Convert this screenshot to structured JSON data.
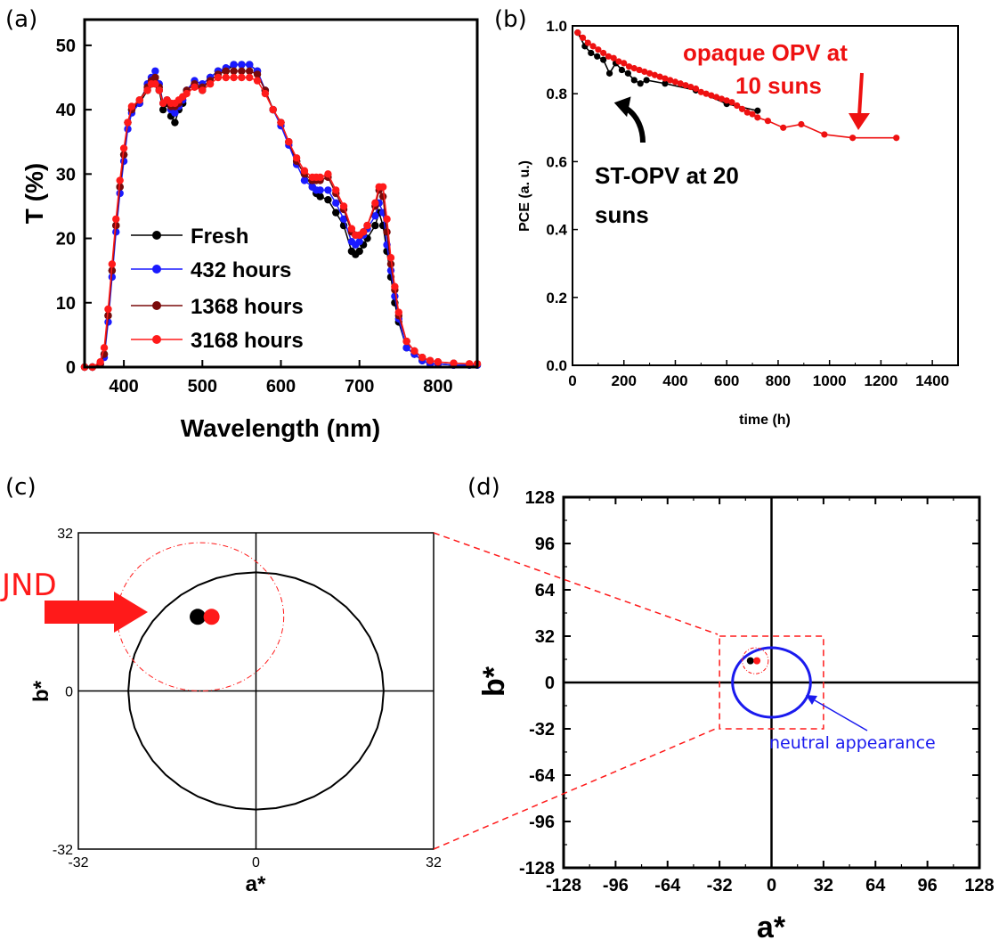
{
  "colors": {
    "fresh": "#000000",
    "h432": "#1a1aff",
    "h1368": "#7a0a0a",
    "h3168": "#ff1a1a",
    "st_opv": "#000000",
    "opaque": "#ee1111",
    "neutral": "#1a1aee",
    "jnd": "#ff1a1a"
  },
  "chart_data": [
    {
      "id": "a",
      "type": "line",
      "panel_label": "(a)",
      "xlabel": "Wavelength (nm)",
      "ylabel": "T (%)",
      "xlim": [
        350,
        850
      ],
      "ylim": [
        0,
        54
      ],
      "xticks": [
        400,
        500,
        600,
        700,
        800
      ],
      "yticks": [
        0,
        10,
        20,
        30,
        40,
        50
      ],
      "legend_position": "center-left",
      "series": [
        {
          "name": "Fresh",
          "color": "#000000",
          "x": [
            350,
            360,
            370,
            375,
            380,
            385,
            390,
            395,
            400,
            405,
            410,
            420,
            430,
            435,
            440,
            445,
            450,
            455,
            460,
            465,
            470,
            475,
            480,
            490,
            500,
            510,
            520,
            530,
            540,
            550,
            560,
            570,
            580,
            590,
            600,
            610,
            620,
            630,
            640,
            645,
            650,
            660,
            670,
            680,
            690,
            695,
            700,
            705,
            710,
            720,
            725,
            730,
            735,
            740,
            745,
            750,
            760,
            770,
            780,
            790,
            800,
            820,
            840,
            850
          ],
          "y": [
            0,
            0,
            0.5,
            2,
            8,
            15,
            22,
            28,
            33,
            38,
            40,
            41,
            43,
            44,
            45,
            43,
            40,
            41,
            39,
            38,
            40,
            41,
            43,
            44,
            43,
            45,
            46,
            46,
            47,
            47,
            47,
            46,
            43,
            40,
            38,
            35,
            32,
            30,
            28,
            27,
            26.5,
            26,
            24,
            22,
            18,
            17.5,
            18,
            19,
            20,
            22,
            24,
            22,
            18,
            14,
            10,
            7,
            3,
            2,
            1,
            0.5,
            0.5,
            0.3,
            0.3,
            0.3
          ]
        },
        {
          "name": "432 hours",
          "color": "#1a1aff",
          "x": [
            350,
            360,
            370,
            375,
            380,
            385,
            390,
            395,
            400,
            405,
            410,
            420,
            430,
            435,
            440,
            445,
            450,
            455,
            460,
            465,
            470,
            475,
            480,
            490,
            500,
            510,
            520,
            530,
            540,
            550,
            560,
            570,
            580,
            590,
            600,
            610,
            620,
            630,
            640,
            645,
            650,
            660,
            670,
            680,
            690,
            695,
            700,
            705,
            710,
            720,
            725,
            730,
            735,
            740,
            745,
            750,
            760,
            770,
            780,
            790,
            800,
            820,
            840,
            850
          ],
          "y": [
            0,
            0,
            0.4,
            1.5,
            7,
            14,
            21,
            27,
            32,
            37,
            39.5,
            41,
            44,
            45,
            46,
            44,
            41,
            41.5,
            40,
            39.5,
            40.5,
            41.5,
            43,
            44.5,
            44,
            45,
            46,
            46.5,
            47,
            47,
            47,
            46,
            43,
            40,
            37.5,
            34.5,
            31.5,
            29,
            28,
            27.5,
            27.5,
            27.5,
            25.5,
            23,
            19.5,
            19,
            19.5,
            20.5,
            21.5,
            23.5,
            25.5,
            24,
            19,
            15,
            11,
            7.5,
            3,
            2,
            1,
            0.5,
            0.5,
            0.3,
            0.3,
            0.3
          ]
        },
        {
          "name": "1368 hours",
          "color": "#7a0a0a",
          "x": [
            350,
            360,
            370,
            375,
            380,
            385,
            390,
            395,
            400,
            405,
            410,
            420,
            430,
            435,
            440,
            445,
            450,
            455,
            460,
            465,
            470,
            475,
            480,
            490,
            500,
            510,
            520,
            530,
            540,
            550,
            560,
            570,
            580,
            590,
            600,
            610,
            620,
            630,
            640,
            645,
            650,
            660,
            670,
            680,
            690,
            695,
            700,
            705,
            710,
            720,
            725,
            730,
            735,
            740,
            745,
            750,
            760,
            770,
            780,
            790,
            800,
            820,
            840,
            850
          ],
          "y": [
            0,
            0,
            0.5,
            2,
            8,
            15,
            22,
            28,
            33,
            38,
            40,
            41.5,
            43.5,
            44.5,
            45,
            43.5,
            41,
            41.5,
            40.5,
            40.5,
            41,
            42,
            43,
            44,
            43.5,
            44.5,
            45.5,
            46,
            46,
            46,
            46,
            45.5,
            43,
            40,
            38,
            35,
            32,
            30,
            29,
            29,
            29,
            29.5,
            27,
            24.5,
            21,
            20.5,
            20.5,
            21,
            22,
            25,
            27.5,
            26.5,
            21,
            16,
            12,
            8,
            4,
            2.5,
            1.5,
            1,
            0.8,
            0.6,
            0.5,
            0.5
          ]
        },
        {
          "name": "3168 hours",
          "color": "#ff1a1a",
          "x": [
            350,
            360,
            370,
            375,
            380,
            385,
            390,
            395,
            400,
            405,
            410,
            420,
            430,
            435,
            440,
            445,
            450,
            455,
            460,
            465,
            470,
            475,
            480,
            490,
            500,
            510,
            520,
            530,
            540,
            550,
            560,
            570,
            580,
            590,
            600,
            610,
            620,
            630,
            640,
            645,
            650,
            660,
            670,
            680,
            690,
            695,
            700,
            705,
            710,
            720,
            725,
            730,
            735,
            740,
            745,
            750,
            760,
            770,
            780,
            790,
            800,
            820,
            840,
            850
          ],
          "y": [
            0,
            0,
            0.8,
            3,
            9,
            16,
            23,
            29,
            34,
            38,
            40.5,
            41.5,
            43,
            44,
            44,
            43,
            41,
            41.5,
            41,
            41,
            41.5,
            42,
            42.5,
            43.5,
            43,
            44,
            45,
            45,
            45,
            45,
            45,
            44.5,
            42.5,
            40,
            38,
            35,
            32.5,
            30.5,
            29.5,
            29.5,
            29.5,
            30,
            27.5,
            25,
            21.5,
            20.5,
            20.5,
            21,
            22,
            25.5,
            28,
            28,
            23,
            17,
            12.5,
            8.5,
            4,
            2.5,
            1.5,
            1,
            0.8,
            0.6,
            0.5,
            0.5
          ]
        }
      ]
    },
    {
      "id": "b",
      "type": "line",
      "panel_label": "(b)",
      "xlabel": "time (h)",
      "ylabel": "PCE (a. u.)",
      "xlim": [
        0,
        1500
      ],
      "ylim": [
        0,
        1.0
      ],
      "xticks": [
        0,
        200,
        400,
        600,
        800,
        1000,
        1200,
        1400
      ],
      "yticks": [
        0.0,
        0.2,
        0.4,
        0.6,
        0.8,
        1.0
      ],
      "series": [
        {
          "name": "ST-OPV at 20 suns",
          "color": "#000000",
          "x": [
            20,
            48,
            72,
            96,
            120,
            144,
            168,
            192,
            216,
            240,
            264,
            288,
            360,
            480,
            600,
            720
          ],
          "y": [
            0.98,
            0.94,
            0.92,
            0.91,
            0.9,
            0.86,
            0.89,
            0.87,
            0.86,
            0.84,
            0.83,
            0.84,
            0.83,
            0.81,
            0.77,
            0.75
          ]
        },
        {
          "name": "opaque OPV at 10 suns",
          "color": "#ee1111",
          "x": [
            20,
            40,
            60,
            80,
            100,
            120,
            140,
            160,
            180,
            200,
            220,
            240,
            260,
            280,
            300,
            320,
            340,
            360,
            380,
            400,
            420,
            440,
            460,
            480,
            500,
            520,
            540,
            560,
            580,
            600,
            620,
            640,
            660,
            680,
            700,
            720,
            760,
            820,
            890,
            980,
            1090,
            1260
          ],
          "y": [
            0.98,
            0.965,
            0.95,
            0.94,
            0.93,
            0.92,
            0.91,
            0.905,
            0.895,
            0.89,
            0.88,
            0.875,
            0.87,
            0.865,
            0.86,
            0.855,
            0.85,
            0.845,
            0.84,
            0.835,
            0.83,
            0.825,
            0.82,
            0.815,
            0.805,
            0.8,
            0.795,
            0.79,
            0.785,
            0.78,
            0.775,
            0.765,
            0.755,
            0.745,
            0.74,
            0.73,
            0.72,
            0.7,
            0.71,
            0.68,
            0.67,
            0.67
          ]
        }
      ],
      "annotations": [
        {
          "text_lines": [
            "opaque OPV at",
            "10 suns"
          ],
          "color": "#ee1111"
        },
        {
          "text_lines": [
            "ST-OPV at 20",
            "suns"
          ],
          "color": "#000000"
        }
      ]
    },
    {
      "id": "c",
      "type": "scatter",
      "panel_label": "(c)",
      "xlabel": "a*",
      "ylabel": "b*",
      "xlim": [
        -32,
        32
      ],
      "ylim": [
        -32,
        32
      ],
      "xticks": [
        -32,
        0,
        32
      ],
      "yticks": [
        -32,
        0,
        32
      ],
      "points": [
        {
          "a": -10.5,
          "b": 15,
          "color": "#000000"
        },
        {
          "a": -8,
          "b": 15,
          "color": "#ff1a1a"
        }
      ],
      "neutral_circle": {
        "center": [
          0,
          0
        ],
        "radius_a": 23,
        "radius_b": 24
      },
      "jnd_circle": {
        "center": [
          -10,
          15
        ],
        "radius": 15
      },
      "annotation": "JND"
    },
    {
      "id": "d",
      "type": "scatter",
      "panel_label": "(d)",
      "xlabel": "a*",
      "ylabel": "b*",
      "xlim": [
        -128,
        128
      ],
      "ylim": [
        -128,
        128
      ],
      "xticks": [
        -128,
        -96,
        -64,
        -32,
        0,
        32,
        64,
        96,
        128
      ],
      "yticks": [
        -128,
        -96,
        -64,
        -32,
        0,
        32,
        64,
        96,
        128
      ],
      "points": [
        {
          "a": -13,
          "b": 15,
          "color": "#000000"
        },
        {
          "a": -9,
          "b": 15,
          "color": "#ff1a1a"
        }
      ],
      "neutral_circle": {
        "center": [
          0,
          0
        ],
        "radius_a": 24,
        "radius_b": 24
      },
      "jnd_circle": {
        "center": [
          -10,
          15
        ],
        "radius": 8
      },
      "zoom_box": [
        -32,
        32,
        -32,
        32
      ],
      "annotation": "neutral appearance"
    }
  ]
}
